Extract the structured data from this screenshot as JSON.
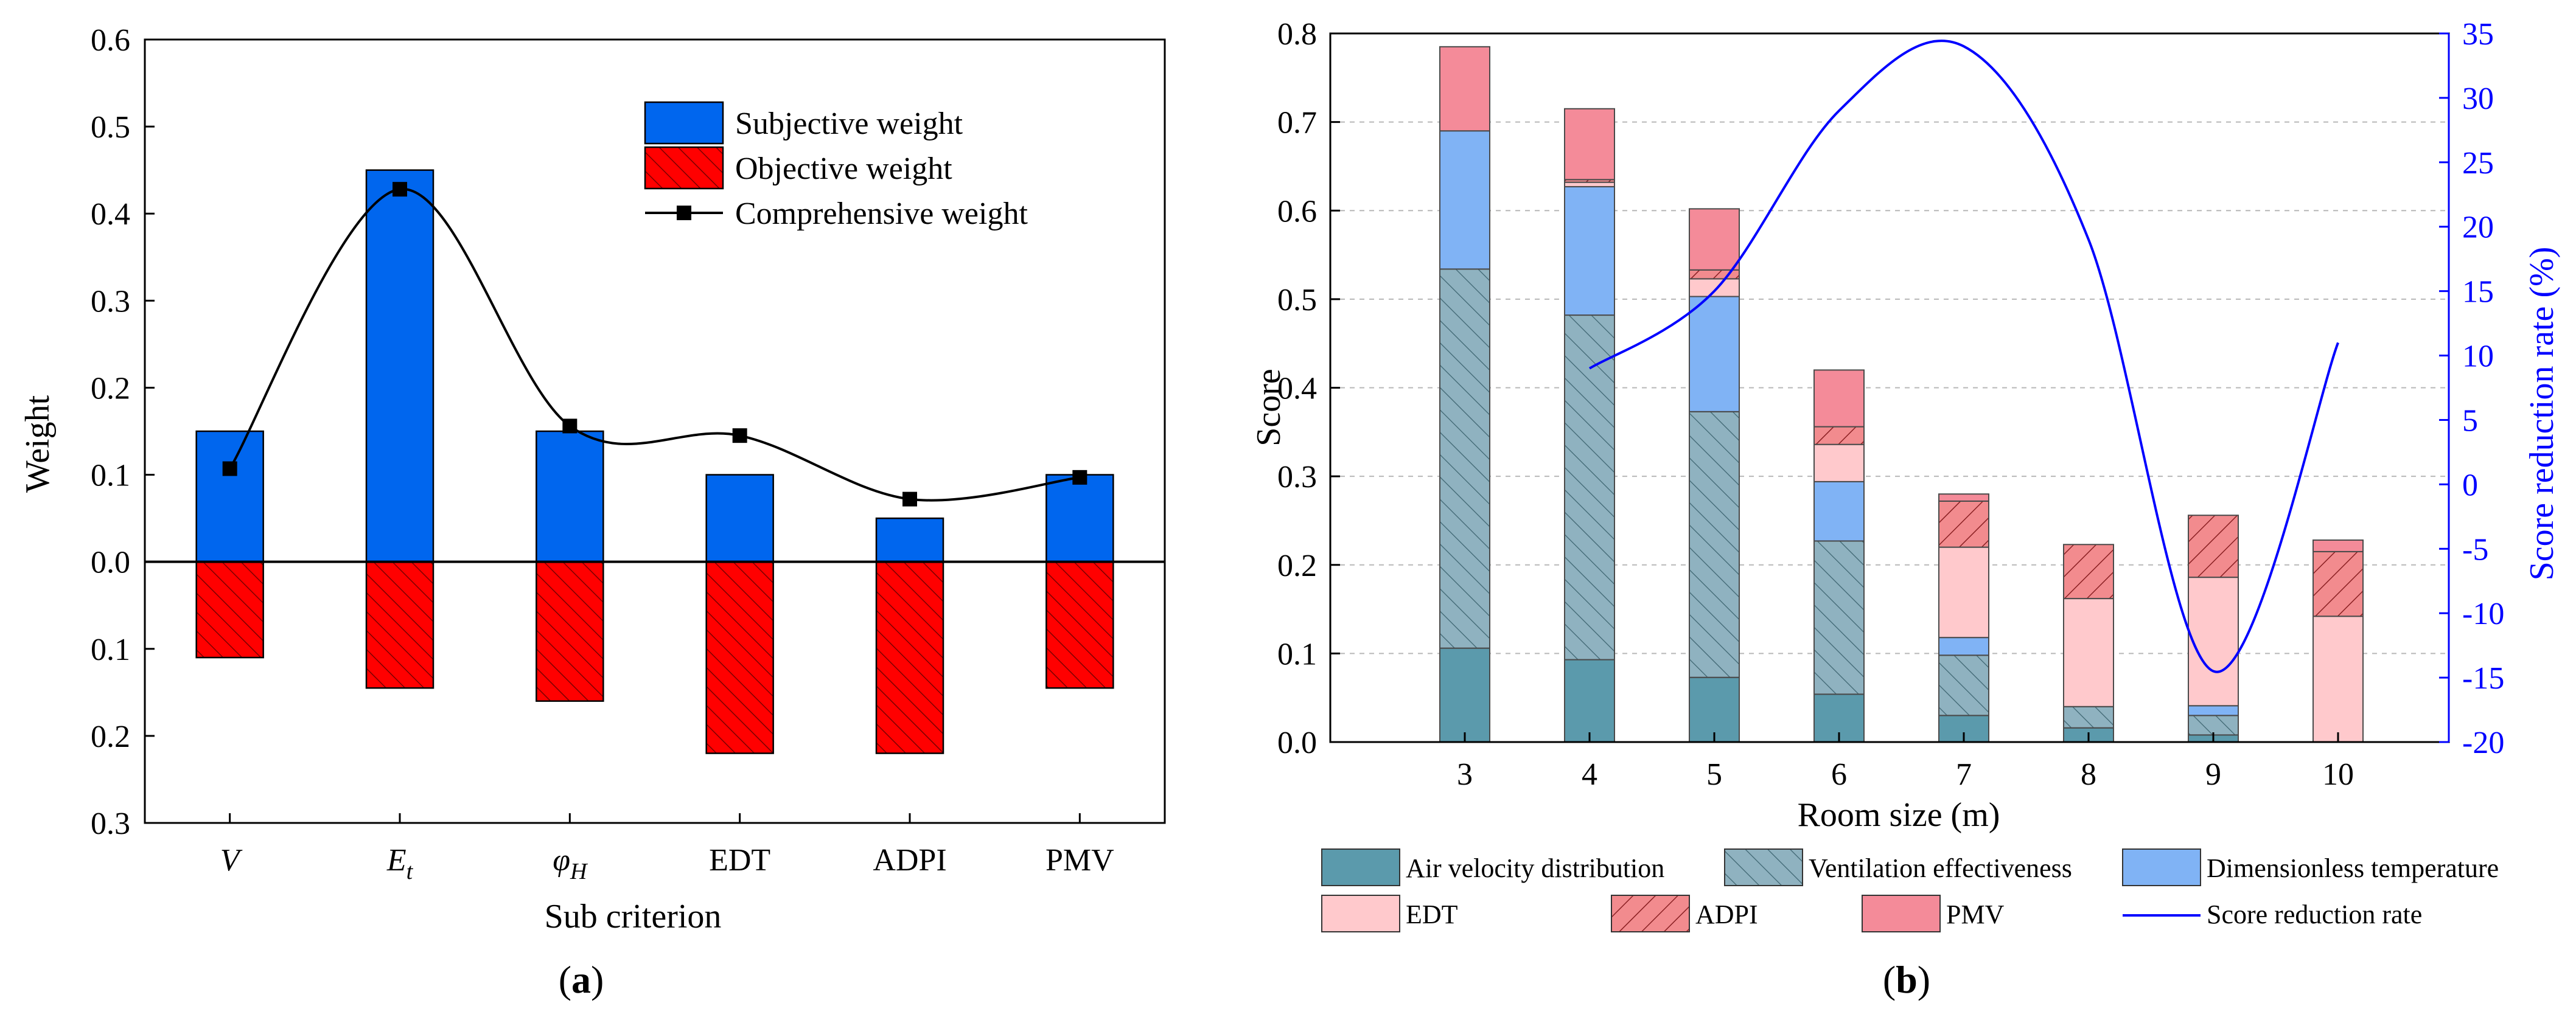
{
  "chart_data": [
    {
      "id": "a",
      "type": "bar",
      "panel_label": "a",
      "categories": [
        "V",
        "E",
        "φ",
        "EDT",
        "ADPI",
        "PMV"
      ],
      "category_subscripts": [
        "",
        "t",
        "H",
        "",
        "",
        ""
      ],
      "xlabel": "Sub criterion",
      "ylabel": "Weight",
      "ylim": [
        -0.3,
        0.6
      ],
      "yticks": [
        0.6,
        0.5,
        0.4,
        0.3,
        0.2,
        0.1,
        0.0,
        -0.1,
        -0.2,
        -0.3
      ],
      "ytick_labels": [
        "0.6",
        "0.5",
        "0.4",
        "0.3",
        "0.2",
        "0.1",
        "0.0",
        "0.1",
        "0.2",
        "0.3"
      ],
      "legend_position": "top-right",
      "series": [
        {
          "name": "Subjective weight",
          "kind": "bar",
          "color": "#0066ee",
          "values": [
            0.15,
            0.45,
            0.15,
            0.1,
            0.05,
            0.1
          ]
        },
        {
          "name": "Objective weight",
          "kind": "bar-down",
          "color": "#ff0000",
          "hatch": "#7a0000",
          "values": [
            0.11,
            0.145,
            0.16,
            0.22,
            0.22,
            0.145
          ]
        },
        {
          "name": "Comprehensive weight",
          "kind": "smooth-line",
          "color": "#000000",
          "values": [
            0.107,
            0.428,
            0.156,
            0.145,
            0.072,
            0.097
          ]
        }
      ]
    },
    {
      "id": "b",
      "type": "bar",
      "stacked": true,
      "panel_label": "b",
      "categories": [
        "3",
        "4",
        "5",
        "6",
        "7",
        "8",
        "9",
        "10"
      ],
      "xlabel": "Room size (m)",
      "ylabel": "Score",
      "y2label": "Score reduction rate (%)",
      "ylim": [
        0.0,
        0.8
      ],
      "yticks": [
        0.0,
        0.1,
        0.2,
        0.3,
        0.4,
        0.5,
        0.6,
        0.7,
        0.8
      ],
      "ytick_labels": [
        "0.0",
        "0.1",
        "0.2",
        "0.3",
        "0.4",
        "0.5",
        "0.6",
        "0.7",
        "0.8"
      ],
      "y2lim": [
        -20,
        35
      ],
      "y2ticks": [
        -20,
        -15,
        -10,
        -5,
        0,
        5,
        10,
        15,
        20,
        25,
        30,
        35
      ],
      "y2tick_labels": [
        "-20",
        "-15",
        "-10",
        "-5",
        "0",
        "5",
        "10",
        "15",
        "20",
        "25",
        "30",
        "35"
      ],
      "grid": true,
      "legend_position": "bottom",
      "series": [
        {
          "name": "Air velocity distribution",
          "color": "#5b9aac",
          "pattern": "none",
          "values": [
            0.106,
            0.093,
            0.073,
            0.054,
            0.03,
            0.016,
            0.008,
            0.0
          ]
        },
        {
          "name": "Ventilation effectiveness",
          "color": "#8fb2c0",
          "pattern": "diag",
          "values": [
            0.428,
            0.389,
            0.3,
            0.173,
            0.068,
            0.024,
            0.022,
            0.0
          ]
        },
        {
          "name": "Dimensionless temperature",
          "color": "#80b3f5",
          "pattern": "none",
          "values": [
            0.156,
            0.145,
            0.13,
            0.067,
            0.02,
            0.0,
            0.011,
            0.0
          ]
        },
        {
          "name": "EDT",
          "color": "#ffc9cc",
          "pattern": "none",
          "values": [
            0.0,
            0.005,
            0.02,
            0.042,
            0.102,
            0.122,
            0.145,
            0.142
          ]
        },
        {
          "name": "ADPI",
          "color": "#f28b8e",
          "pattern": "diag-dark",
          "values": [
            0.0,
            0.003,
            0.01,
            0.02,
            0.052,
            0.061,
            0.07,
            0.073
          ]
        },
        {
          "name": "PMV",
          "color": "#f48b99",
          "pattern": "none",
          "values": [
            0.095,
            0.08,
            0.069,
            0.064,
            0.008,
            0.0,
            0.0,
            0.013
          ]
        }
      ],
      "line_series": {
        "name": "Score reduction rate",
        "color": "#0000ff",
        "axis": "right",
        "x": [
          "4",
          "5",
          "6",
          "7",
          "8",
          "9",
          "10"
        ],
        "values": [
          9.0,
          15.0,
          29.0,
          34.0,
          19.0,
          -14.5,
          11.0
        ]
      }
    }
  ]
}
